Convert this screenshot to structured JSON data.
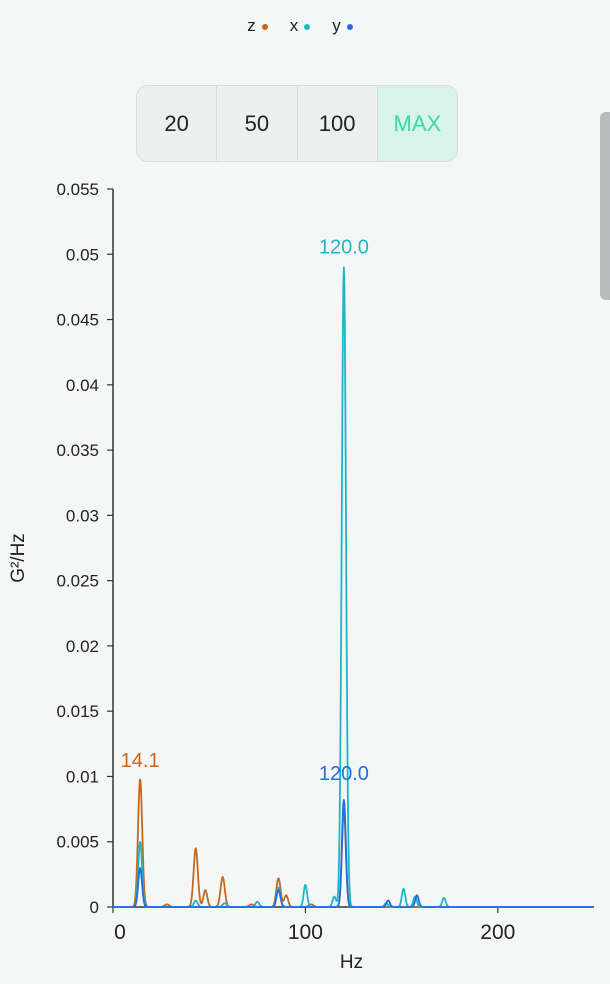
{
  "legend": [
    {
      "label": "z",
      "color": "#c8661c"
    },
    {
      "label": "x",
      "color": "#1fb5c9"
    },
    {
      "label": "y",
      "color": "#1f6fe0"
    }
  ],
  "range_buttons": [
    {
      "label": "20",
      "active": false
    },
    {
      "label": "50",
      "active": false
    },
    {
      "label": "100",
      "active": false
    },
    {
      "label": "MAX",
      "active": true
    }
  ],
  "chart_data": {
    "type": "line",
    "title": "",
    "xlabel": "Hz",
    "ylabel": "G²/Hz",
    "xlim": [
      0,
      250
    ],
    "ylim": [
      0,
      0.055
    ],
    "xticks": [
      0,
      100,
      200
    ],
    "yticks": [
      0,
      0.005,
      0.01,
      0.015,
      0.02,
      0.025,
      0.03,
      0.035,
      0.04,
      0.045,
      0.05,
      0.055
    ],
    "ytick_labels": [
      "0",
      "0.005",
      "0.01",
      "0.015",
      "0.02",
      "0.025",
      "0.03",
      "0.035",
      "0.04",
      "0.045",
      "0.05",
      "0.055"
    ],
    "grid": false,
    "legend_position": "top-center",
    "series": [
      {
        "name": "z",
        "color": "#c8661c",
        "peaks": [
          {
            "x": 14.1,
            "y": 0.0098,
            "w": 1.1
          },
          {
            "x": 28,
            "y": 0.0002,
            "w": 1.2
          },
          {
            "x": 43,
            "y": 0.0045,
            "w": 1.1
          },
          {
            "x": 48,
            "y": 0.0013,
            "w": 1.0
          },
          {
            "x": 57,
            "y": 0.0023,
            "w": 1.1
          },
          {
            "x": 72,
            "y": 0.0002,
            "w": 1.2
          },
          {
            "x": 86,
            "y": 0.0022,
            "w": 1.1
          },
          {
            "x": 90,
            "y": 0.0009,
            "w": 1.0
          },
          {
            "x": 103,
            "y": 0.0002,
            "w": 1.2
          },
          {
            "x": 120.0,
            "y": 0.0075,
            "w": 1.0
          }
        ],
        "peak_label": {
          "x": 14.1,
          "y": 0.0098,
          "text": "14.1",
          "dy": -12
        }
      },
      {
        "name": "x",
        "color": "#1fb5c9",
        "peaks": [
          {
            "x": 14.1,
            "y": 0.005,
            "w": 1.0
          },
          {
            "x": 43,
            "y": 0.0005,
            "w": 1.0
          },
          {
            "x": 58,
            "y": 0.0003,
            "w": 1.0
          },
          {
            "x": 75,
            "y": 0.0004,
            "w": 1.0
          },
          {
            "x": 86,
            "y": 0.0015,
            "w": 1.0
          },
          {
            "x": 100,
            "y": 0.0017,
            "w": 0.9
          },
          {
            "x": 115,
            "y": 0.0008,
            "w": 0.9
          },
          {
            "x": 120.0,
            "y": 0.049,
            "w": 1.1
          },
          {
            "x": 142,
            "y": 0.0003,
            "w": 0.9
          },
          {
            "x": 151,
            "y": 0.0014,
            "w": 0.9
          },
          {
            "x": 157,
            "y": 0.0008,
            "w": 0.9
          },
          {
            "x": 172,
            "y": 0.0007,
            "w": 0.9
          }
        ],
        "peak_label": {
          "x": 120.0,
          "y": 0.049,
          "text": "120.0",
          "dy": -14
        }
      },
      {
        "name": "y",
        "color": "#1f6fe0",
        "peaks": [
          {
            "x": 14.1,
            "y": 0.003,
            "w": 1.0
          },
          {
            "x": 86,
            "y": 0.0013,
            "w": 1.0
          },
          {
            "x": 120.0,
            "y": 0.0082,
            "w": 1.0
          },
          {
            "x": 143,
            "y": 0.0005,
            "w": 0.9
          },
          {
            "x": 158,
            "y": 0.0009,
            "w": 0.9
          }
        ],
        "peak_label": {
          "x": 120.0,
          "y": 0.0082,
          "text": "120.0",
          "dy": -20
        }
      }
    ]
  }
}
